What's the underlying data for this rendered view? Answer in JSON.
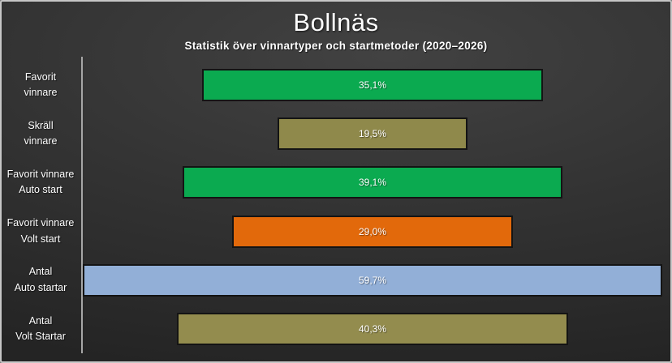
{
  "header": {
    "title": "Bollnäs",
    "subtitle": "Statistik över vinnartyper och startmetoder (2020–2026)"
  },
  "chart_data": {
    "type": "bar",
    "orientation": "horizontal",
    "style": "funnel-centered",
    "title": "Bollnäs",
    "subtitle": "Statistik över vinnartyper och startmetoder (2020–2026)",
    "categories": [
      "Favorit\nvinnare",
      "Skräll\nvinnare",
      "Favorit vinnare\nAuto start",
      "Favorit vinnare\nVolt start",
      "Antal\nAuto startar",
      "Antal\nVolt Startar"
    ],
    "values": [
      35.1,
      19.5,
      39.1,
      29.0,
      59.7,
      40.3
    ],
    "value_labels": [
      "35,1%",
      "19,5%",
      "39,1%",
      "29,0%",
      "59,7%",
      "40,3%"
    ],
    "bar_colors": [
      "#0baa50",
      "#8f894b",
      "#0baa50",
      "#e2690b",
      "#92afd7",
      "#938c4e"
    ],
    "xlim": [
      0,
      59.7
    ],
    "bars_centered": true,
    "grid": false,
    "legend": false,
    "data_labels": "inside-center"
  },
  "colors": {
    "frame_border": "#c6c6c6",
    "background_light": "#424242",
    "background_mid": "#333333",
    "background_dark": "#242424",
    "axis_line": "#a6a6a6",
    "text": "#ffffff",
    "bar_border": "#141414"
  }
}
